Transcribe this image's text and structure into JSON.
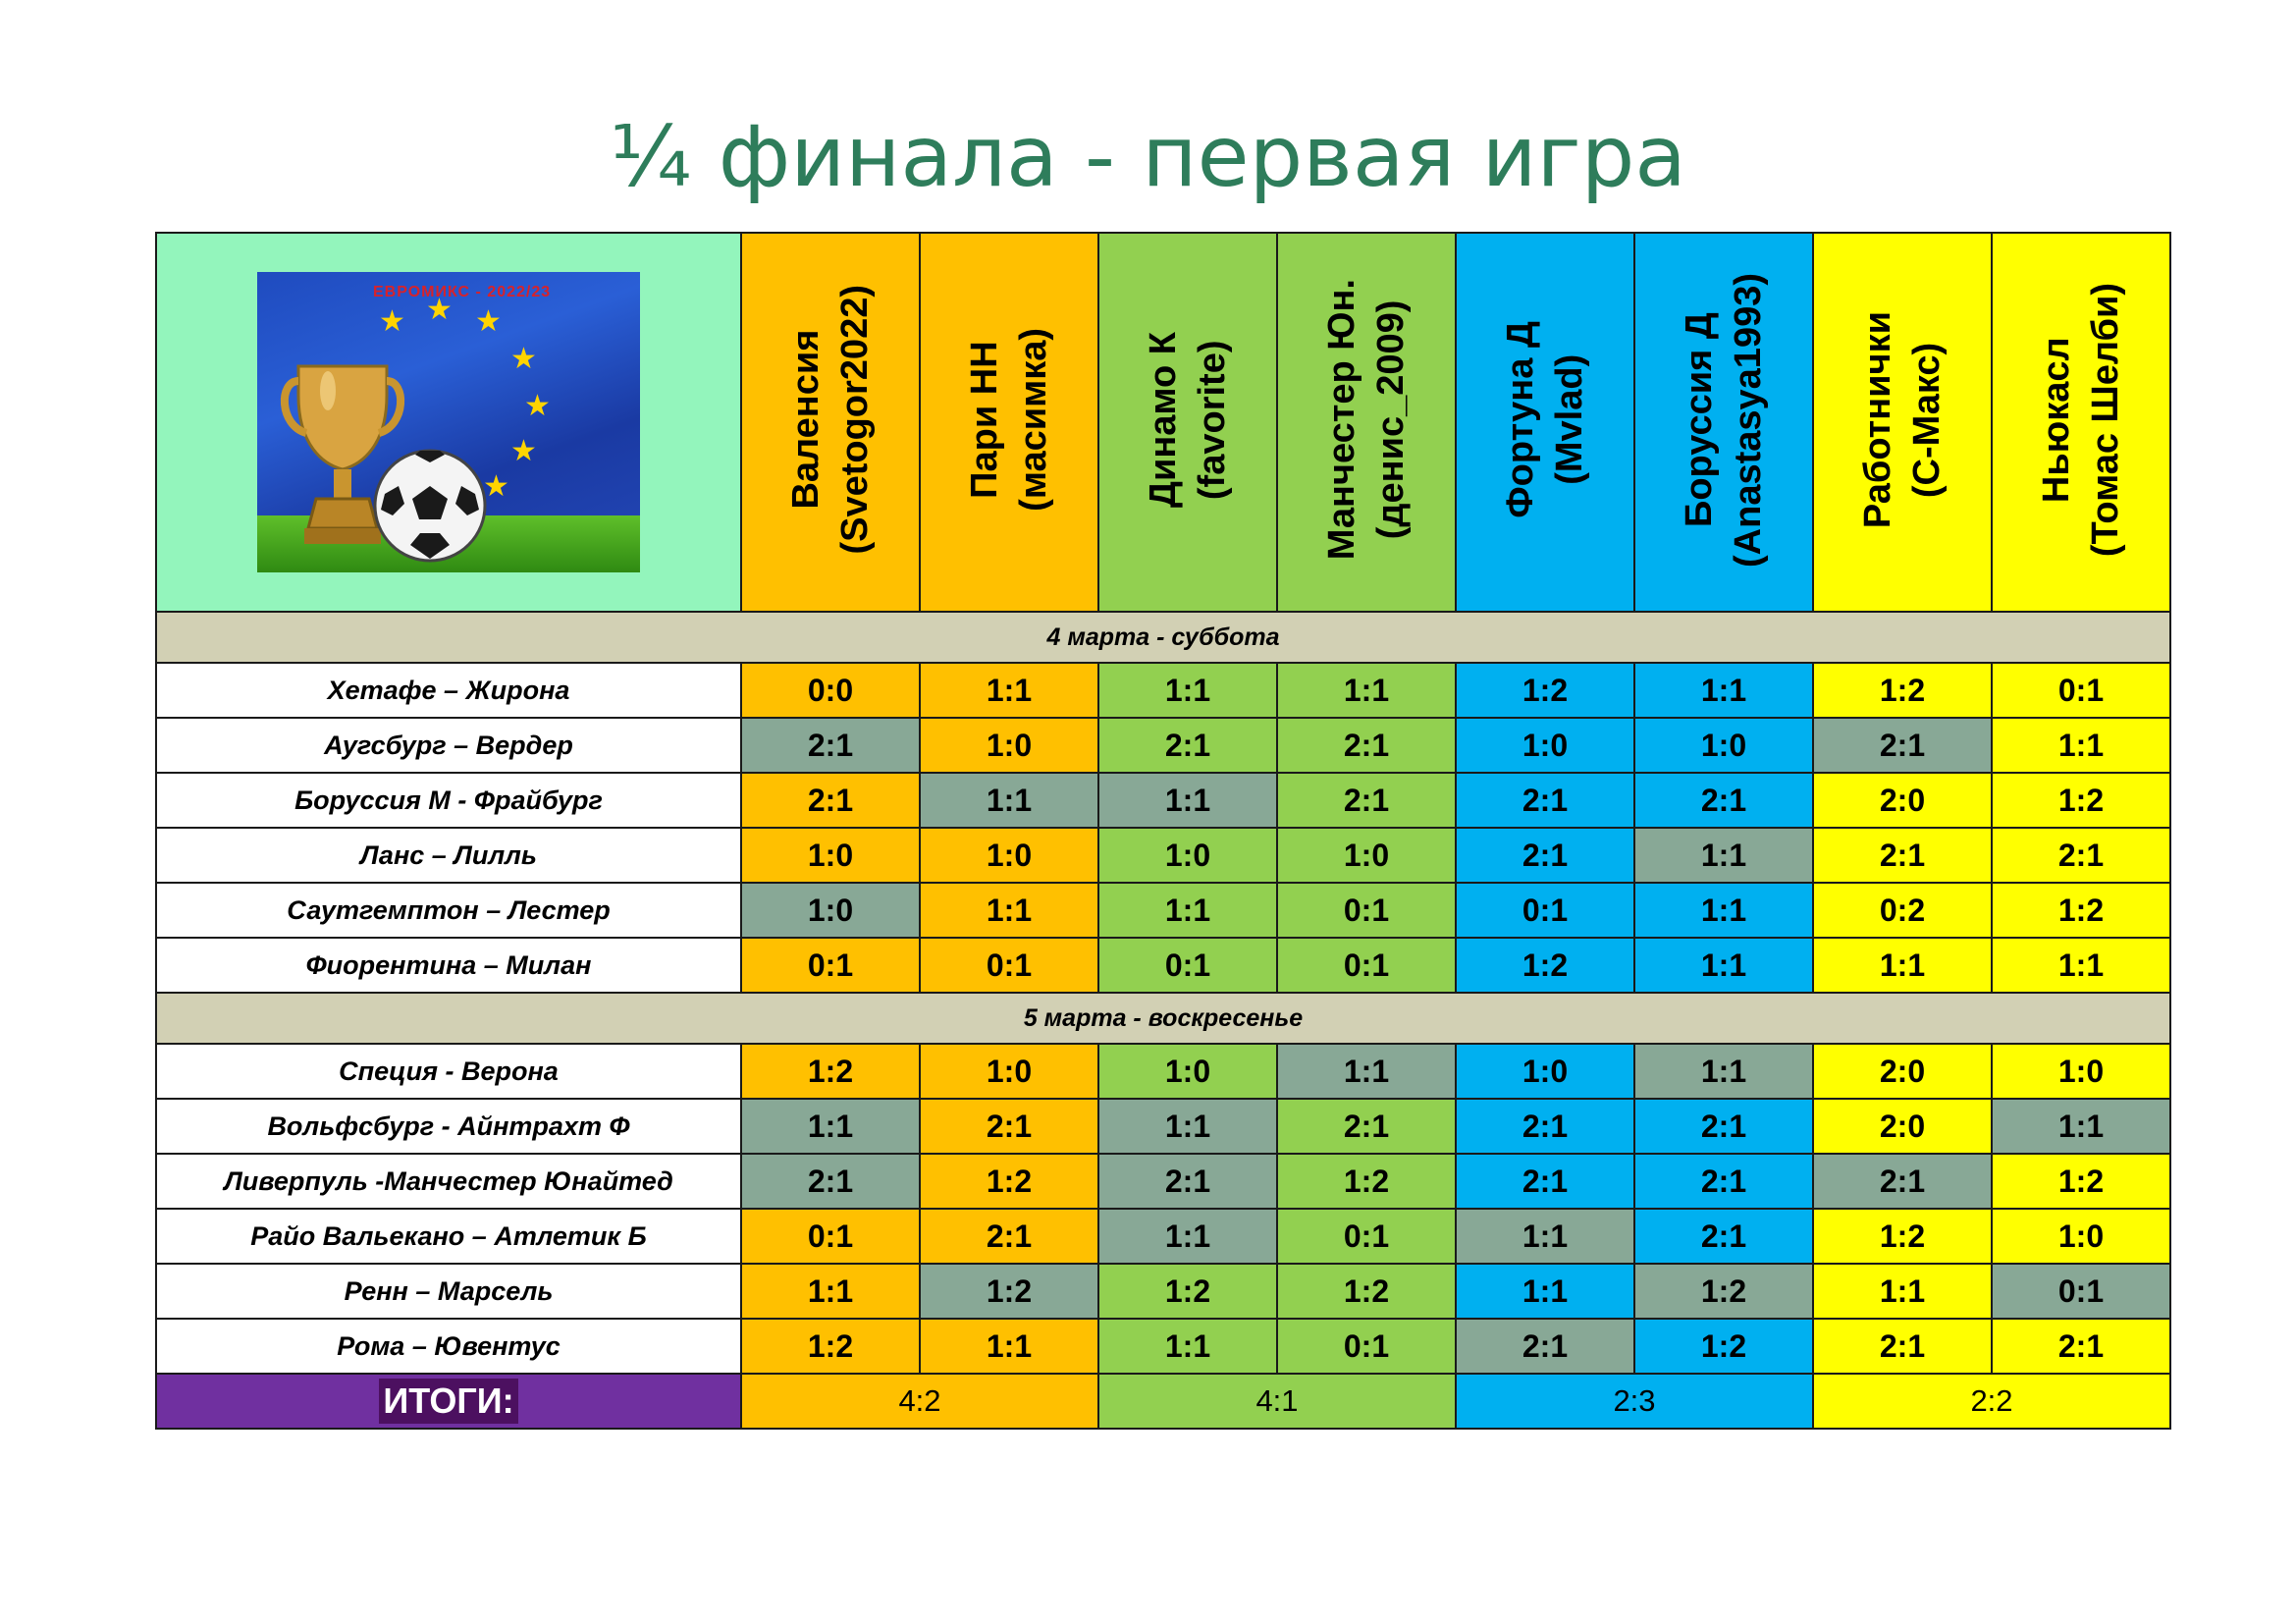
{
  "title": "¼ финала - первая игра",
  "logo": {
    "caption": "ЕВРОМИКС - 2022/23",
    "icon": "trophy-and-football-on-eu-flag"
  },
  "teams": [
    {
      "name": "Валенсия",
      "player": "(Svetogor2022)",
      "color": "#ffc000"
    },
    {
      "name": "Пари НН",
      "player": "(масимка)",
      "color": "#ffc000"
    },
    {
      "name": "Динамо К",
      "player": "(favorite)",
      "color": "#92d050"
    },
    {
      "name": "Манчестер Юн.",
      "player": "(денис_2009)",
      "color": "#92d050"
    },
    {
      "name": "Фортуна Д",
      "player": "(Mvlad)",
      "color": "#00b0f0"
    },
    {
      "name": "Боруссия Д",
      "player": "(Anastasya1993)",
      "color": "#00b0f0"
    },
    {
      "name": "Работнички",
      "player": "(С-Макс)",
      "color": "#ffff00"
    },
    {
      "name": "Ньюкасл",
      "player": "(Томас Шелби)",
      "color": "#ffff00"
    }
  ],
  "highlight_color": "#88a896",
  "days": [
    {
      "label": "4 марта - суббота",
      "matches": [
        {
          "name": "Хетафе – Жирона",
          "scores": [
            "0:0",
            "1:1",
            "1:1",
            "1:1",
            "1:2",
            "1:1",
            "1:2",
            "0:1"
          ],
          "hl": [
            0,
            0,
            0,
            0,
            0,
            0,
            0,
            0
          ]
        },
        {
          "name": "Аугсбург – Вердер",
          "scores": [
            "2:1",
            "1:0",
            "2:1",
            "2:1",
            "1:0",
            "1:0",
            "2:1",
            "1:1"
          ],
          "hl": [
            1,
            0,
            0,
            0,
            0,
            0,
            1,
            0
          ]
        },
        {
          "name": "Боруссия М - Фрайбург",
          "scores": [
            "2:1",
            "1:1",
            "1:1",
            "2:1",
            "2:1",
            "2:1",
            "2:0",
            "1:2"
          ],
          "hl": [
            0,
            1,
            1,
            0,
            0,
            0,
            0,
            0
          ]
        },
        {
          "name": "Ланс – Лилль",
          "scores": [
            "1:0",
            "1:0",
            "1:0",
            "1:0",
            "2:1",
            "1:1",
            "2:1",
            "2:1"
          ],
          "hl": [
            0,
            0,
            0,
            0,
            0,
            1,
            0,
            0
          ]
        },
        {
          "name": "Саутгемптон – Лестер",
          "scores": [
            "1:0",
            "1:1",
            "1:1",
            "0:1",
            "0:1",
            "1:1",
            "0:2",
            "1:2"
          ],
          "hl": [
            1,
            0,
            0,
            0,
            0,
            0,
            0,
            0
          ]
        },
        {
          "name": "Фиорентина – Милан",
          "scores": [
            "0:1",
            "0:1",
            "0:1",
            "0:1",
            "1:2",
            "1:1",
            "1:1",
            "1:1"
          ],
          "hl": [
            0,
            0,
            0,
            0,
            0,
            0,
            0,
            0
          ]
        }
      ]
    },
    {
      "label": "5 марта - воскресенье",
      "matches": [
        {
          "name": "Специя - Верона",
          "scores": [
            "1:2",
            "1:0",
            "1:0",
            "1:1",
            "1:0",
            "1:1",
            "2:0",
            "1:0"
          ],
          "hl": [
            0,
            0,
            0,
            1,
            0,
            1,
            0,
            0
          ]
        },
        {
          "name": "Вольфсбург - Айнтрахт Ф",
          "scores": [
            "1:1",
            "2:1",
            "1:1",
            "2:1",
            "2:1",
            "2:1",
            "2:0",
            "1:1"
          ],
          "hl": [
            1,
            0,
            1,
            0,
            0,
            0,
            0,
            1
          ]
        },
        {
          "name": "Ливерпуль -Манчестер Юнайтед",
          "scores": [
            "2:1",
            "1:2",
            "2:1",
            "1:2",
            "2:1",
            "2:1",
            "2:1",
            "1:2"
          ],
          "hl": [
            1,
            0,
            1,
            0,
            0,
            0,
            1,
            0
          ]
        },
        {
          "name": "Райо Вальекано – Атлетик Б",
          "scores": [
            "0:1",
            "2:1",
            "1:1",
            "0:1",
            "1:1",
            "2:1",
            "1:2",
            "1:0"
          ],
          "hl": [
            0,
            0,
            1,
            0,
            1,
            0,
            0,
            0
          ]
        },
        {
          "name": "Ренн – Марсель",
          "scores": [
            "1:1",
            "1:2",
            "1:2",
            "1:2",
            "1:1",
            "1:2",
            "1:1",
            "0:1"
          ],
          "hl": [
            0,
            1,
            0,
            0,
            0,
            1,
            0,
            1
          ]
        },
        {
          "name": "Рома – Ювентус",
          "scores": [
            "1:2",
            "1:1",
            "1:1",
            "0:1",
            "2:1",
            "1:2",
            "2:1",
            "2:1"
          ],
          "hl": [
            0,
            0,
            0,
            0,
            1,
            0,
            0,
            0
          ]
        }
      ]
    }
  ],
  "totals": {
    "label": "ИТОГИ:",
    "values": [
      "4:2",
      "4:1",
      "2:3",
      "2:2"
    ]
  }
}
